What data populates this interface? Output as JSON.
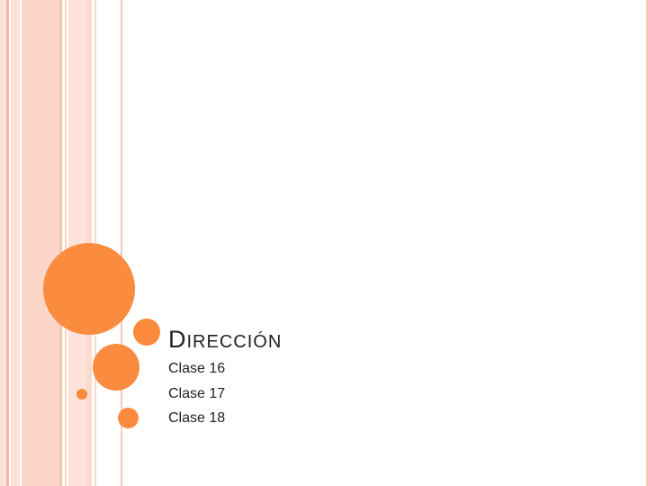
{
  "slide": {
    "title_initial": "D",
    "title_rest": "IRECCIÓN",
    "items": [
      {
        "label": "Clase 16"
      },
      {
        "label": "Clase 17"
      },
      {
        "label": "Clase 18"
      }
    ]
  },
  "colors": {
    "accent": "#fb8b3e",
    "stripe_light": "#fde3da",
    "stripe_mid": "#fbd6c8",
    "text": "#222222"
  }
}
